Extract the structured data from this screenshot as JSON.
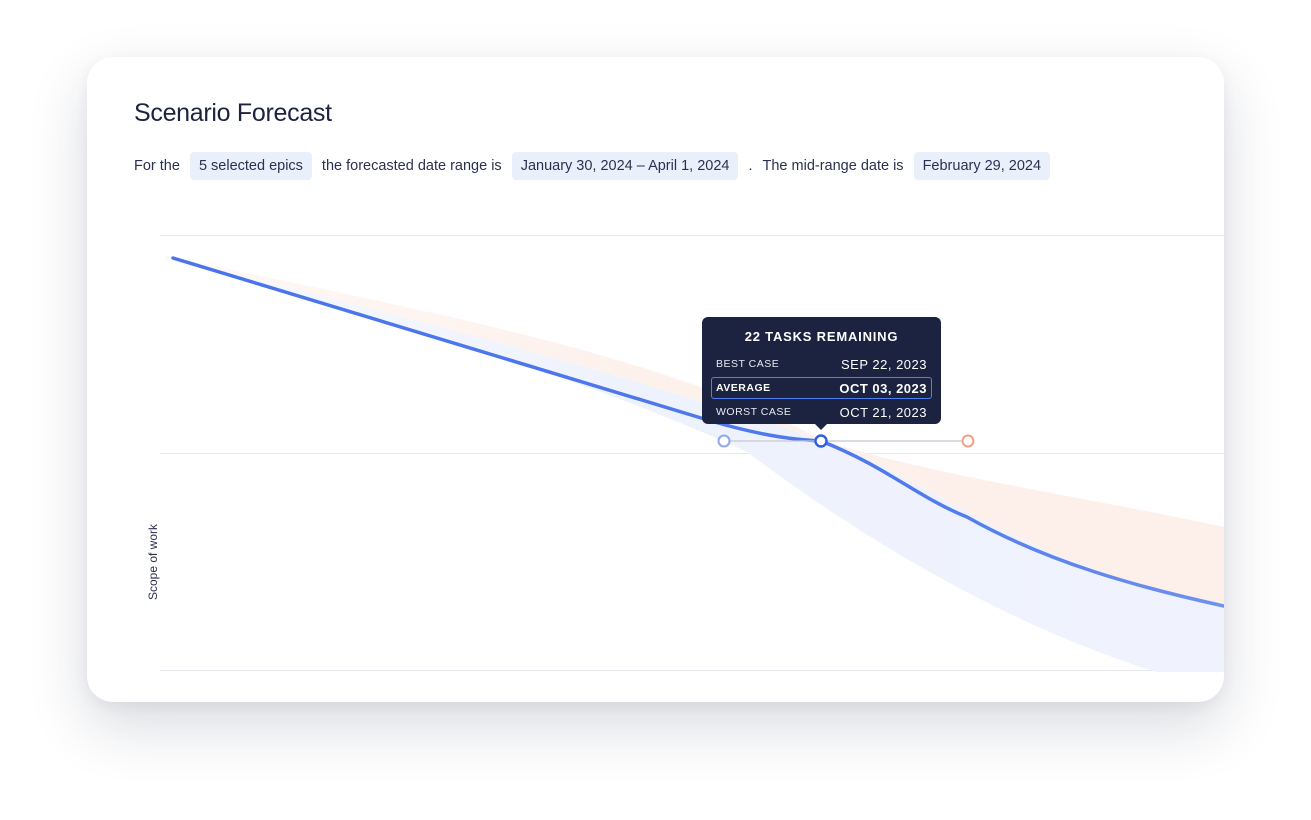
{
  "header": {
    "title": "Scenario Forecast"
  },
  "summary": {
    "prefix": "For the",
    "epics_chip": "5 selected epics",
    "middle": "the forecasted date range is",
    "range_chip": "January 30, 2024 – April 1, 2024",
    "separator": ".",
    "midrange_text": "The mid-range date is",
    "midrange_chip": "February 29, 2024"
  },
  "chart_data": {
    "type": "line",
    "ylabel": "Scope of work",
    "xlabel": "",
    "grid": true,
    "series": [
      {
        "name": "Best case"
      },
      {
        "name": "Average"
      },
      {
        "name": "Worst case"
      }
    ]
  },
  "tooltip": {
    "title": "22 TASKS REMAINING",
    "rows": [
      {
        "label": "BEST CASE",
        "value": "SEP 22, 2023",
        "active": false
      },
      {
        "label": "AVERAGE",
        "value": "OCT 03, 2023",
        "active": true
      },
      {
        "label": "WORST CASE",
        "value": "OCT 21, 2023",
        "active": false
      }
    ]
  },
  "colors": {
    "average_line": "#4a74ec",
    "best_band": "#eef2fc",
    "worst_band": "#fdf1ec",
    "best_marker": "#8ea8ee",
    "worst_marker": "#f2a08a",
    "tooltip_bg": "#1c2340"
  }
}
